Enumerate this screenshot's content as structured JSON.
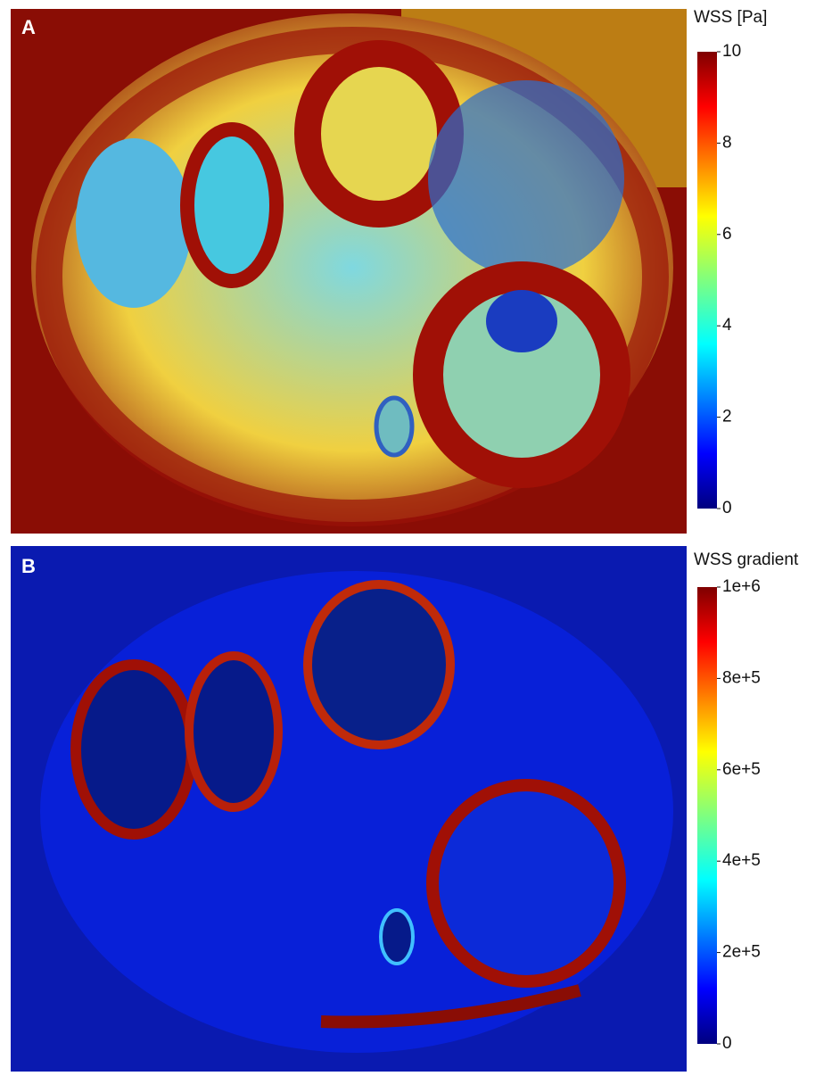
{
  "panels": [
    {
      "label": "A",
      "colorbar": {
        "title": "WSS [Pa]",
        "clim": [
          0,
          10
        ],
        "ticks": [
          0,
          2,
          4,
          6,
          8,
          10
        ]
      }
    },
    {
      "label": "B",
      "colorbar": {
        "title": "WSS gradient",
        "clim": [
          0,
          1000000
        ],
        "ticks": [
          0,
          {
            "value": 200000,
            "label": "2e+5"
          },
          {
            "value": 400000,
            "label": "4e+5"
          },
          {
            "value": 600000,
            "label": "6e+5"
          },
          {
            "value": 800000,
            "label": "8e+5"
          },
          {
            "value": 1000000,
            "label": "1e+6"
          }
        ]
      }
    }
  ]
}
